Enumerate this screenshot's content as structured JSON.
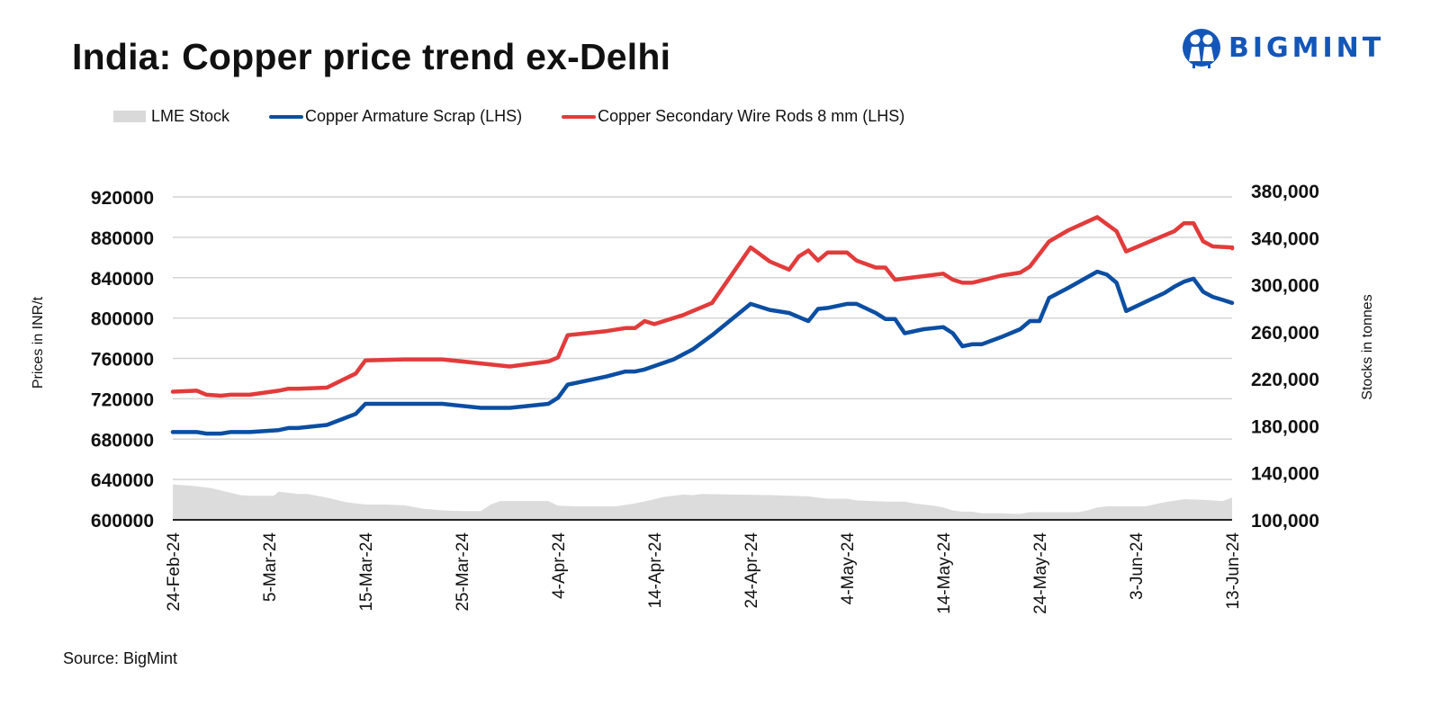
{
  "header": {
    "title": "India: Copper price trend ex-Delhi",
    "logo_text": "BIGMINT"
  },
  "colors": {
    "armature": "#0b4ea2",
    "wire_rods": "#e23b3b",
    "lme_stock": "#dcdcdc",
    "logo": "#1456b8",
    "gridline": "#d4d4d4"
  },
  "legend": [
    {
      "label": "LME Stock",
      "type": "area"
    },
    {
      "label": "Copper Armature Scrap (LHS)",
      "type": "line"
    },
    {
      "label": "Copper Secondary Wire Rods 8 mm (LHS)",
      "type": "line"
    }
  ],
  "footer": {
    "source": "Source: BigMint"
  },
  "chart_data": {
    "type": "line",
    "title": "India: Copper price trend ex-Delhi",
    "xlabel": "",
    "ylabel": "Prices in INR/t",
    "y2label": "Stocks in tonnes",
    "ylim": [
      600000,
      920000
    ],
    "y2lim": [
      100000,
      380000
    ],
    "yticks": [
      "920000",
      "880000",
      "840000",
      "800000",
      "760000",
      "720000",
      "680000",
      "640000",
      "600000"
    ],
    "y2ticks": [
      "380,000",
      "340,000",
      "300,000",
      "260,000",
      "220,000",
      "180,000",
      "140,000",
      "100,000"
    ],
    "x_start": "24-Feb-24",
    "x_end": "13-Jun-24",
    "x_unit": "days since 24-Feb-24",
    "xticks": [
      {
        "label": "24-Feb-24",
        "day": 0
      },
      {
        "label": "5-Mar-24",
        "day": 10
      },
      {
        "label": "15-Mar-24",
        "day": 20
      },
      {
        "label": "25-Mar-24",
        "day": 30
      },
      {
        "label": "4-Apr-24",
        "day": 40
      },
      {
        "label": "14-Apr-24",
        "day": 50
      },
      {
        "label": "24-Apr-24",
        "day": 60
      },
      {
        "label": "4-May-24",
        "day": 70
      },
      {
        "label": "14-May-24",
        "day": 80
      },
      {
        "label": "24-May-24",
        "day": 90
      },
      {
        "label": "3-Jun-24",
        "day": 100
      },
      {
        "label": "13-Jun-24",
        "day": 110
      }
    ],
    "grid": true,
    "legend_position": "top-left",
    "series": [
      {
        "name": "LME Stock",
        "axis": "right",
        "type": "area",
        "points": [
          [
            0,
            130000
          ],
          [
            2,
            129000
          ],
          [
            4,
            127000
          ],
          [
            6,
            123000
          ],
          [
            7,
            121000
          ],
          [
            8,
            120500
          ],
          [
            10,
            120500
          ],
          [
            10.5,
            120500
          ],
          [
            11,
            124000
          ],
          [
            13,
            122000
          ],
          [
            14,
            122000
          ],
          [
            16,
            119000
          ],
          [
            18,
            115000
          ],
          [
            20,
            113000
          ],
          [
            22,
            113000
          ],
          [
            24,
            112500
          ],
          [
            26,
            109500
          ],
          [
            28,
            108000
          ],
          [
            30,
            107500
          ],
          [
            32,
            107500
          ],
          [
            33,
            113000
          ],
          [
            34,
            116000
          ],
          [
            38,
            116000
          ],
          [
            39,
            116000
          ],
          [
            40,
            112000
          ],
          [
            42,
            111500
          ],
          [
            46,
            111500
          ],
          [
            48,
            114000
          ],
          [
            50,
            117500
          ],
          [
            51,
            119500
          ],
          [
            53,
            121500
          ],
          [
            54,
            121000
          ],
          [
            55,
            122000
          ],
          [
            58,
            121500
          ],
          [
            62,
            121000
          ],
          [
            66,
            120000
          ],
          [
            67,
            119000
          ],
          [
            68,
            118000
          ],
          [
            70,
            118000
          ],
          [
            71,
            116500
          ],
          [
            74,
            115500
          ],
          [
            76,
            115500
          ],
          [
            77,
            114000
          ],
          [
            79,
            112000
          ],
          [
            80,
            110500
          ],
          [
            81,
            108000
          ],
          [
            82,
            107000
          ],
          [
            83,
            107000
          ],
          [
            84,
            105500
          ],
          [
            86,
            105500
          ],
          [
            88,
            105000
          ],
          [
            89,
            106500
          ],
          [
            93,
            106500
          ],
          [
            94,
            106500
          ],
          [
            95,
            108000
          ],
          [
            96,
            110500
          ],
          [
            97,
            111500
          ],
          [
            100,
            111500
          ],
          [
            101,
            111500
          ],
          [
            103,
            115000
          ],
          [
            105,
            117500
          ],
          [
            107,
            117000
          ],
          [
            109,
            116000
          ],
          [
            110,
            119000
          ]
        ]
      },
      {
        "name": "Copper Armature Scrap (LHS)",
        "axis": "left",
        "type": "line",
        "points": [
          [
            0,
            687000
          ],
          [
            2.5,
            687000
          ],
          [
            3.5,
            685500
          ],
          [
            5,
            685500
          ],
          [
            6,
            687000
          ],
          [
            8,
            687000
          ],
          [
            11,
            689000
          ],
          [
            12,
            691000
          ],
          [
            13,
            691000
          ],
          [
            16,
            694000
          ],
          [
            19,
            705000
          ],
          [
            20,
            715000
          ],
          [
            24,
            715000
          ],
          [
            28,
            715000
          ],
          [
            32,
            711000
          ],
          [
            35,
            711000
          ],
          [
            39,
            715000
          ],
          [
            40,
            721000
          ],
          [
            41,
            734000
          ],
          [
            45,
            742000
          ],
          [
            47,
            747000
          ],
          [
            48,
            747000
          ],
          [
            49,
            749000
          ],
          [
            52,
            759000
          ],
          [
            54,
            769000
          ],
          [
            56,
            783000
          ],
          [
            60,
            814000
          ],
          [
            62,
            808000
          ],
          [
            64,
            805000
          ],
          [
            66,
            797000
          ],
          [
            67,
            809000
          ],
          [
            68,
            810000
          ],
          [
            70,
            814000
          ],
          [
            71,
            814000
          ],
          [
            73,
            805000
          ],
          [
            74,
            799000
          ],
          [
            75,
            799000
          ],
          [
            76,
            785000
          ],
          [
            78,
            789000
          ],
          [
            80,
            791000
          ],
          [
            81,
            785000
          ],
          [
            82,
            772000
          ],
          [
            83,
            774000
          ],
          [
            84,
            774000
          ],
          [
            86,
            781000
          ],
          [
            88,
            789000
          ],
          [
            89,
            797000
          ],
          [
            90,
            797000
          ],
          [
            91,
            820000
          ],
          [
            93,
            830000
          ],
          [
            96,
            846000
          ],
          [
            97,
            843000
          ],
          [
            98,
            835000
          ],
          [
            99,
            807000
          ],
          [
            101,
            816000
          ],
          [
            103,
            825000
          ],
          [
            104,
            831000
          ],
          [
            105,
            836000
          ],
          [
            106,
            839000
          ],
          [
            107,
            826000
          ],
          [
            108,
            821000
          ],
          [
            109,
            818000
          ],
          [
            112,
            815000
          ]
        ]
      },
      {
        "name": "Copper Secondary Wire Rods 8 mm (LHS)",
        "axis": "left",
        "type": "line",
        "points": [
          [
            0,
            727000
          ],
          [
            2.5,
            728000
          ],
          [
            3.5,
            724000
          ],
          [
            5,
            723000
          ],
          [
            6,
            724000
          ],
          [
            8,
            724000
          ],
          [
            11,
            728000
          ],
          [
            12,
            730000
          ],
          [
            13,
            730000
          ],
          [
            16,
            731000
          ],
          [
            19,
            745000
          ],
          [
            20,
            758000
          ],
          [
            24,
            759000
          ],
          [
            28,
            759000
          ],
          [
            32,
            755000
          ],
          [
            35,
            752000
          ],
          [
            39,
            757000
          ],
          [
            40,
            761000
          ],
          [
            41,
            783000
          ],
          [
            45,
            787000
          ],
          [
            47,
            790000
          ],
          [
            48,
            790000
          ],
          [
            49,
            797000
          ],
          [
            50,
            794000
          ],
          [
            53,
            803000
          ],
          [
            56,
            815000
          ],
          [
            60,
            870000
          ],
          [
            62,
            856000
          ],
          [
            64,
            848000
          ],
          [
            65,
            861000
          ],
          [
            66,
            867000
          ],
          [
            67,
            857000
          ],
          [
            68,
            865000
          ],
          [
            70,
            865000
          ],
          [
            71,
            857000
          ],
          [
            73,
            850000
          ],
          [
            74,
            850000
          ],
          [
            75,
            838000
          ],
          [
            80,
            844000
          ],
          [
            81,
            838000
          ],
          [
            82,
            835000
          ],
          [
            83,
            835000
          ],
          [
            86,
            842000
          ],
          [
            88,
            845000
          ],
          [
            89,
            851000
          ],
          [
            91,
            876000
          ],
          [
            93,
            887000
          ],
          [
            96,
            900000
          ],
          [
            97,
            893000
          ],
          [
            98,
            886000
          ],
          [
            99,
            866000
          ],
          [
            101,
            874000
          ],
          [
            103,
            882000
          ],
          [
            104,
            886000
          ],
          [
            105,
            894000
          ],
          [
            106,
            894000
          ],
          [
            107,
            876000
          ],
          [
            108,
            871000
          ],
          [
            110,
            870000
          ],
          [
            111,
            869000
          ]
        ]
      }
    ]
  }
}
